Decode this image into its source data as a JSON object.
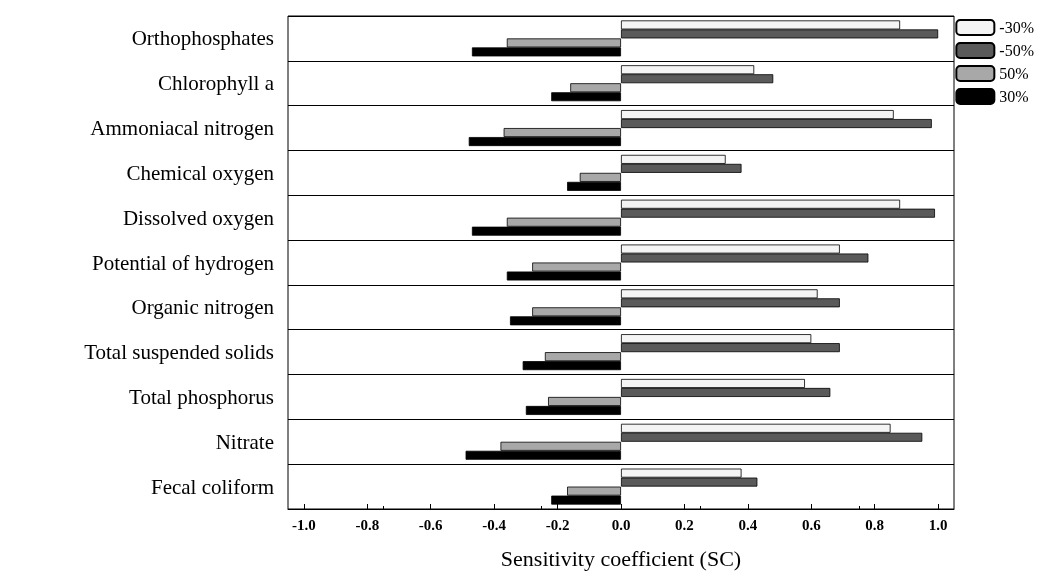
{
  "chart_data": {
    "type": "bar",
    "orientation": "horizontal",
    "xlabel": "Sensitivity coefficient (SC)",
    "categories": [
      "Orthophosphates",
      "Chlorophyll a",
      "Ammoniacal nitrogen",
      "Chemical oxygen",
      "Dissolved oxygen",
      "Potential of hydrogen",
      "Organic nitrogen",
      "Total suspended solids",
      "Total phosphorus",
      "Nitrate",
      "Fecal coliform"
    ],
    "series": [
      {
        "name": "-30%",
        "color": "#f4f4f4",
        "values": [
          0.88,
          0.42,
          0.86,
          0.33,
          0.88,
          0.69,
          0.62,
          0.6,
          0.58,
          0.85,
          0.38
        ]
      },
      {
        "name": "-50%",
        "color": "#5a5a5a",
        "values": [
          1.0,
          0.48,
          0.98,
          0.38,
          0.99,
          0.78,
          0.69,
          0.69,
          0.66,
          0.95,
          0.43
        ]
      },
      {
        "name": "50%",
        "color": "#a8a8a8",
        "values": [
          -0.36,
          -0.16,
          -0.37,
          -0.13,
          -0.36,
          -0.28,
          -0.28,
          -0.24,
          -0.23,
          -0.38,
          -0.17
        ]
      },
      {
        "name": "30%",
        "color": "#000000",
        "values": [
          -0.47,
          -0.22,
          -0.48,
          -0.17,
          -0.47,
          -0.36,
          -0.35,
          -0.31,
          -0.3,
          -0.49,
          -0.22
        ]
      }
    ],
    "xlim": [
      -1.05,
      1.05
    ],
    "xticks": [
      {
        "value": -1,
        "label": "-1.0"
      },
      -0.8,
      -0.6,
      -0.4,
      -0.2,
      {
        "value": 0,
        "label": "0.0"
      },
      0.2,
      0.4,
      0.6,
      0.8,
      {
        "value": 1,
        "label": "1.0"
      }
    ],
    "grid": "y",
    "legend": "top right"
  }
}
